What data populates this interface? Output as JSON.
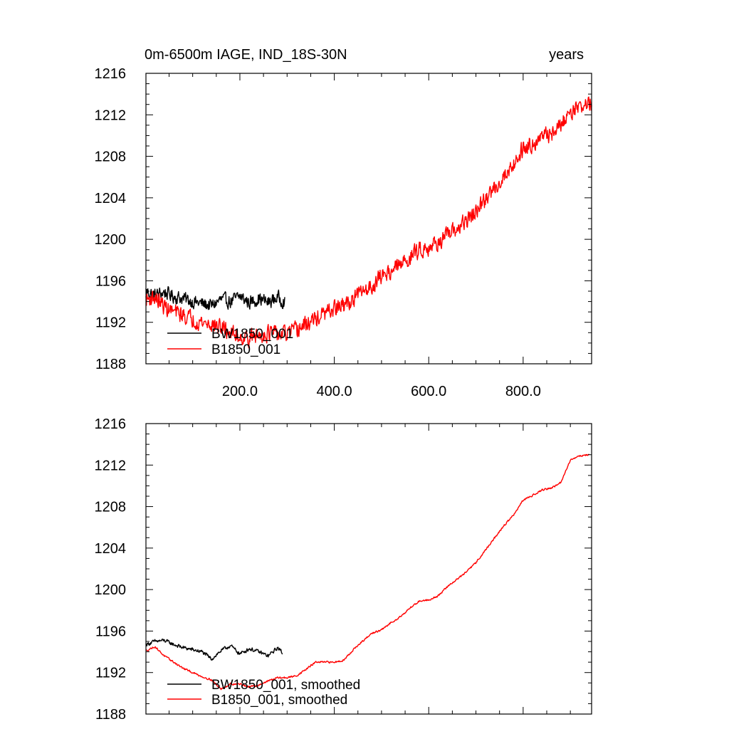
{
  "chart_data": [
    {
      "type": "line",
      "title": "0m-6500m IAGE, IND_18S-30N",
      "units_label": "years",
      "xlim": [
        1,
        945
      ],
      "ylim": [
        1188,
        1216
      ],
      "yticks": [
        1188,
        1192,
        1196,
        1200,
        1204,
        1208,
        1212,
        1216
      ],
      "xticks": [
        200,
        400,
        600,
        800
      ],
      "xtick_labels": [
        "200.0",
        "400.0",
        "600.0",
        "800.0"
      ],
      "show_xtick_labels": true,
      "legend_position": "bottom-left",
      "series": [
        {
          "name": "BW1850_001",
          "color": "#000000",
          "x": [
            1,
            20,
            40,
            60,
            80,
            100,
            120,
            140,
            160,
            180,
            200,
            220,
            240,
            260,
            280,
            295
          ],
          "y": [
            1195.0,
            1194.6,
            1194.9,
            1194.5,
            1194.3,
            1194.0,
            1193.8,
            1193.6,
            1194.2,
            1194.0,
            1194.5,
            1193.9,
            1194.3,
            1193.9,
            1194.4,
            1194.0
          ],
          "noise": 0.9
        },
        {
          "name": "B1850_001",
          "color": "#ff0000",
          "x": [
            1,
            20,
            40,
            60,
            80,
            100,
            120,
            140,
            160,
            180,
            200,
            220,
            240,
            260,
            280,
            300,
            320,
            340,
            360,
            380,
            400,
            420,
            440,
            460,
            480,
            500,
            520,
            540,
            560,
            580,
            600,
            620,
            640,
            660,
            680,
            700,
            720,
            740,
            760,
            780,
            800,
            820,
            840,
            860,
            880,
            900,
            920,
            945
          ],
          "y": [
            1194.2,
            1194.4,
            1193.5,
            1193.0,
            1192.7,
            1192.3,
            1192.0,
            1191.8,
            1191.5,
            1191.0,
            1190.6,
            1190.5,
            1190.7,
            1191.0,
            1190.8,
            1190.9,
            1191.2,
            1191.8,
            1192.3,
            1192.8,
            1193.3,
            1193.6,
            1194.2,
            1195.0,
            1195.5,
            1196.5,
            1197.0,
            1197.5,
            1198.3,
            1199.0,
            1199.3,
            1199.7,
            1200.3,
            1201.0,
            1201.8,
            1202.6,
            1203.8,
            1205.0,
            1206.1,
            1207.3,
            1208.8,
            1209.3,
            1209.8,
            1210.2,
            1211.0,
            1212.4,
            1212.8,
            1213.1
          ],
          "noise": 1.1
        }
      ]
    },
    {
      "type": "line",
      "title": "",
      "xlim": [
        1,
        945
      ],
      "ylim": [
        1188,
        1216
      ],
      "yticks": [
        1188,
        1192,
        1196,
        1200,
        1204,
        1208,
        1212,
        1216
      ],
      "xticks": [
        200,
        400,
        600,
        800
      ],
      "show_xtick_labels": false,
      "legend_position": "bottom-left",
      "series": [
        {
          "name": "BW1850_001, smoothed",
          "color": "#000000",
          "x": [
            1,
            20,
            40,
            60,
            80,
            100,
            120,
            140,
            160,
            180,
            200,
            220,
            240,
            260,
            280,
            290
          ],
          "y": [
            1194.7,
            1195.0,
            1195.1,
            1194.7,
            1194.4,
            1194.2,
            1194.0,
            1193.3,
            1194.1,
            1194.6,
            1193.8,
            1194.3,
            1194.0,
            1193.6,
            1194.4,
            1193.9
          ],
          "noise": 0.25
        },
        {
          "name": "B1850_001, smoothed",
          "color": "#ff0000",
          "x": [
            1,
            20,
            40,
            60,
            80,
            100,
            120,
            140,
            160,
            180,
            200,
            220,
            240,
            260,
            280,
            300,
            320,
            340,
            360,
            380,
            400,
            420,
            440,
            460,
            480,
            500,
            520,
            540,
            560,
            580,
            600,
            620,
            640,
            660,
            680,
            700,
            720,
            740,
            760,
            780,
            800,
            820,
            840,
            860,
            880,
            900,
            920,
            940
          ],
          "y": [
            1194.1,
            1194.5,
            1193.6,
            1193.0,
            1192.4,
            1192.0,
            1191.6,
            1191.3,
            1190.4,
            1190.9,
            1190.9,
            1190.6,
            1190.8,
            1191.2,
            1191.5,
            1191.5,
            1191.7,
            1192.3,
            1193.0,
            1193.0,
            1193.0,
            1193.2,
            1194.2,
            1195.0,
            1195.8,
            1196.1,
            1196.8,
            1197.4,
            1198.2,
            1198.9,
            1199.0,
            1199.4,
            1200.3,
            1201.0,
            1201.7,
            1202.6,
            1203.8,
            1205.0,
            1206.2,
            1207.2,
            1208.6,
            1209.1,
            1209.6,
            1209.8,
            1210.3,
            1212.5,
            1212.9,
            1213.0
          ],
          "noise": 0.12
        }
      ]
    }
  ]
}
